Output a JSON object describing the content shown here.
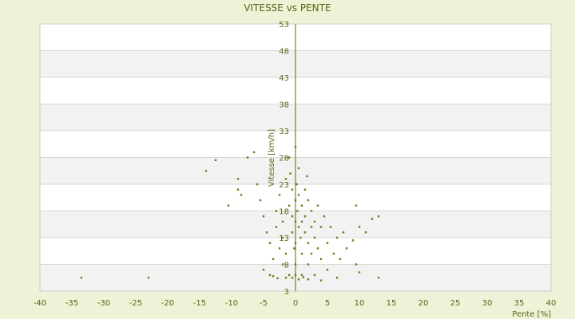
{
  "chart_data": {
    "type": "scatter",
    "title": "VITESSE vs PENTE",
    "xlabel": "Pente [%]",
    "ylabel": "Vitesse [km/h]",
    "xlim": [
      -40,
      40
    ],
    "ylim": [
      3,
      53
    ],
    "x_ticks": [
      -40,
      -35,
      -30,
      -25,
      -20,
      -15,
      -10,
      -5,
      0,
      5,
      10,
      15,
      20,
      25,
      30,
      35,
      40
    ],
    "y_ticks": [
      3,
      8,
      13,
      18,
      23,
      28,
      33,
      38,
      43,
      48,
      53
    ],
    "grid": true,
    "legend": "none",
    "marker_color": "#6b7a12",
    "points": [
      [
        -33.5,
        5.5
      ],
      [
        -23.0,
        5.5
      ],
      [
        -14.0,
        25.5
      ],
      [
        -12.5,
        27.5
      ],
      [
        -9.0,
        24.0
      ],
      [
        -9.0,
        22.0
      ],
      [
        -8.5,
        21.0
      ],
      [
        -7.5,
        28.0
      ],
      [
        -6.5,
        29.0
      ],
      [
        -10.5,
        19.0
      ],
      [
        -6.0,
        23.0
      ],
      [
        -5.5,
        20.0
      ],
      [
        -5.0,
        17.0
      ],
      [
        -4.5,
        14.0
      ],
      [
        -4.0,
        12.0
      ],
      [
        -5.0,
        7.0
      ],
      [
        -4.0,
        6.0
      ],
      [
        -3.5,
        9.0
      ],
      [
        -3.0,
        18.0
      ],
      [
        -2.5,
        21.0
      ],
      [
        -2.0,
        16.0
      ],
      [
        -2.0,
        13.0
      ],
      [
        -1.5,
        10.0
      ],
      [
        -1.0,
        6.0
      ],
      [
        -1.0,
        19.0
      ],
      [
        -0.5,
        22.0
      ],
      [
        -0.5,
        17.0
      ],
      [
        -0.5,
        14.0
      ],
      [
        -0.2,
        11.0
      ],
      [
        0.0,
        20.0
      ],
      [
        0.0,
        16.0
      ],
      [
        0.0,
        12.0
      ],
      [
        0.0,
        8.0
      ],
      [
        0.0,
        6.0
      ],
      [
        0.2,
        23.0
      ],
      [
        0.3,
        18.0
      ],
      [
        0.5,
        15.0
      ],
      [
        0.5,
        21.0
      ],
      [
        0.8,
        13.0
      ],
      [
        1.0,
        19.0
      ],
      [
        1.0,
        16.0
      ],
      [
        1.0,
        10.0
      ],
      [
        1.0,
        6.0
      ],
      [
        1.5,
        22.0
      ],
      [
        1.5,
        17.0
      ],
      [
        1.5,
        14.0
      ],
      [
        2.0,
        20.0
      ],
      [
        2.0,
        12.0
      ],
      [
        2.0,
        8.0
      ],
      [
        2.5,
        18.0
      ],
      [
        2.5,
        15.0
      ],
      [
        2.5,
        10.0
      ],
      [
        3.0,
        16.0
      ],
      [
        3.0,
        13.0
      ],
      [
        3.0,
        6.0
      ],
      [
        3.5,
        19.0
      ],
      [
        3.5,
        11.0
      ],
      [
        4.0,
        15.0
      ],
      [
        4.0,
        9.0
      ],
      [
        4.5,
        17.0
      ],
      [
        5.0,
        12.0
      ],
      [
        5.0,
        7.0
      ],
      [
        5.5,
        15.0
      ],
      [
        6.0,
        10.0
      ],
      [
        6.5,
        13.0
      ],
      [
        7.0,
        9.0
      ],
      [
        7.5,
        14.0
      ],
      [
        8.0,
        11.0
      ],
      [
        9.0,
        12.5
      ],
      [
        9.5,
        19.0
      ],
      [
        10.0,
        15.0
      ],
      [
        10.0,
        6.5
      ],
      [
        11.0,
        14.0
      ],
      [
        12.0,
        16.5
      ],
      [
        13.0,
        17.0
      ],
      [
        13.0,
        5.5
      ],
      [
        9.5,
        8.0
      ],
      [
        6.5,
        5.5
      ],
      [
        4.0,
        5.0
      ],
      [
        -0.8,
        25.0
      ],
      [
        0.5,
        26.0
      ],
      [
        -1.5,
        24.0
      ],
      [
        1.8,
        24.5
      ],
      [
        -1.0,
        28.0
      ],
      [
        0.0,
        30.0
      ],
      [
        -2.5,
        11.0
      ],
      [
        -3.0,
        15.0
      ],
      [
        -2.0,
        8.0
      ],
      [
        -1.5,
        5.5
      ],
      [
        0.5,
        5.2
      ],
      [
        2.0,
        5.2
      ],
      [
        -0.5,
        5.5
      ],
      [
        1.2,
        5.6
      ],
      [
        -3.5,
        5.8
      ],
      [
        -2.8,
        5.4
      ]
    ]
  }
}
